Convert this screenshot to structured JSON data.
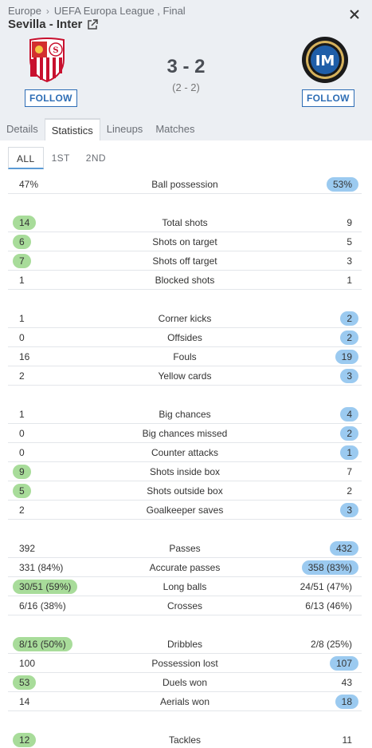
{
  "breadcrumb": {
    "region": "Europe",
    "competition": "UEFA Europa League , Final"
  },
  "match": {
    "title": "Sevilla - Inter",
    "score": "3 - 2",
    "subscore": "(2 - 2)"
  },
  "teams": {
    "home": {
      "name": "Sevilla",
      "follow_label": "FOLLOW",
      "logo_icon": "sevilla-crest-icon"
    },
    "away": {
      "name": "Inter",
      "follow_label": "FOLLOW",
      "logo_icon": "inter-crest-icon"
    }
  },
  "tabs": [
    {
      "label": "Details"
    },
    {
      "label": "Statistics",
      "active": true
    },
    {
      "label": "Lineups"
    },
    {
      "label": "Matches"
    }
  ],
  "period_tabs": [
    {
      "label": "ALL",
      "active": true
    },
    {
      "label": "1ST"
    },
    {
      "label": "2ND"
    }
  ],
  "colors": {
    "home_highlight": "#a8dc9a",
    "away_highlight": "#9bcaf0",
    "accent": "#2d6db5"
  },
  "stats": [
    {
      "label": "Ball possession",
      "home": "47%",
      "away": "53%",
      "winner": "away"
    },
    null,
    {
      "label": "Total shots",
      "home": "14",
      "away": "9",
      "winner": "home"
    },
    {
      "label": "Shots on target",
      "home": "6",
      "away": "5",
      "winner": "home"
    },
    {
      "label": "Shots off target",
      "home": "7",
      "away": "3",
      "winner": "home"
    },
    {
      "label": "Blocked shots",
      "home": "1",
      "away": "1",
      "winner": ""
    },
    null,
    {
      "label": "Corner kicks",
      "home": "1",
      "away": "2",
      "winner": "away"
    },
    {
      "label": "Offsides",
      "home": "0",
      "away": "2",
      "winner": "away"
    },
    {
      "label": "Fouls",
      "home": "16",
      "away": "19",
      "winner": "away"
    },
    {
      "label": "Yellow cards",
      "home": "2",
      "away": "3",
      "winner": "away"
    },
    null,
    {
      "label": "Big chances",
      "home": "1",
      "away": "4",
      "winner": "away"
    },
    {
      "label": "Big chances missed",
      "home": "0",
      "away": "2",
      "winner": "away"
    },
    {
      "label": "Counter attacks",
      "home": "0",
      "away": "1",
      "winner": "away"
    },
    {
      "label": "Shots inside box",
      "home": "9",
      "away": "7",
      "winner": "home"
    },
    {
      "label": "Shots outside box",
      "home": "5",
      "away": "2",
      "winner": "home"
    },
    {
      "label": "Goalkeeper saves",
      "home": "2",
      "away": "3",
      "winner": "away"
    },
    null,
    {
      "label": "Passes",
      "home": "392",
      "away": "432",
      "winner": "away"
    },
    {
      "label": "Accurate passes",
      "home": "331 (84%)",
      "away": "358 (83%)",
      "winner": "away"
    },
    {
      "label": "Long balls",
      "home": "30/51 (59%)",
      "away": "24/51 (47%)",
      "winner": "home"
    },
    {
      "label": "Crosses",
      "home": "6/16 (38%)",
      "away": "6/13 (46%)",
      "winner": ""
    },
    null,
    {
      "label": "Dribbles",
      "home": "8/16 (50%)",
      "away": "2/8 (25%)",
      "winner": "home"
    },
    {
      "label": "Possession lost",
      "home": "100",
      "away": "107",
      "winner": "away"
    },
    {
      "label": "Duels won",
      "home": "53",
      "away": "43",
      "winner": "home"
    },
    {
      "label": "Aerials won",
      "home": "14",
      "away": "18",
      "winner": "away"
    },
    null,
    {
      "label": "Tackles",
      "home": "12",
      "away": "11",
      "winner": "home"
    }
  ]
}
